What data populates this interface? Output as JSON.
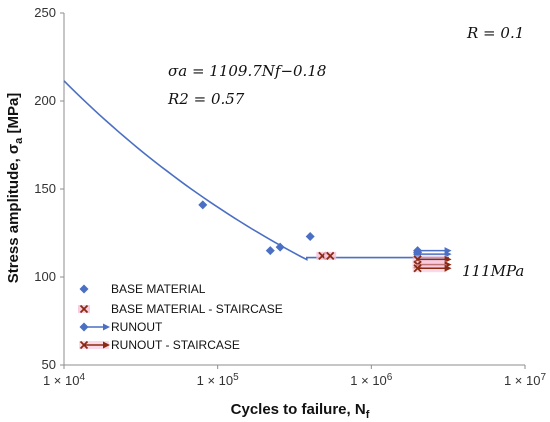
{
  "chart_data": {
    "type": "scatter",
    "xscale": "log",
    "xlim": [
      10000,
      10000000
    ],
    "ylim": [
      50,
      250
    ],
    "x_ticks": [
      {
        "value": 10000,
        "base": "1 × 10",
        "exp": "4"
      },
      {
        "value": 100000,
        "base": "1 × 10",
        "exp": "5"
      },
      {
        "value": 1000000,
        "base": "1 × 10",
        "exp": "6"
      },
      {
        "value": 10000000,
        "base": "1 × 10",
        "exp": "7"
      }
    ],
    "y_ticks": [
      50,
      100,
      150,
      200,
      250
    ],
    "xlabel_main": "Cycles to failure, N",
    "xlabel_sub": "f",
    "ylabel_main": "Stress amplitude, σ",
    "ylabel_sub": "a",
    "ylabel_unit": " [MPa]",
    "grid": false,
    "annotations": {
      "ratio": "R = 0.1",
      "equation": "σa = 1109.7Nf−0.18",
      "r_squared": "R2 = 0.57",
      "endurance": "111MPa"
    },
    "fit_curve": {
      "coefficient": 1109.7,
      "exponent": -0.18,
      "knee_x": 380000,
      "endurance_y": 111,
      "x_end": 3200000
    },
    "series": [
      {
        "name": "BASE MATERIAL",
        "marker": "diamond",
        "color": "#4a6fc3",
        "points": [
          [
            80000,
            141
          ],
          [
            220000,
            115
          ],
          [
            255000,
            117
          ],
          [
            400000,
            123
          ],
          [
            2000000,
            114
          ]
        ]
      },
      {
        "name": "BASE MATERIAL - STAIRCASE",
        "marker": "x",
        "color": "#8b2a12",
        "points": [
          [
            480000,
            112
          ],
          [
            540000,
            112
          ]
        ]
      },
      {
        "name": "RUNOUT",
        "marker": "arrow",
        "color": "#4a6fc3",
        "points": [
          [
            2000000,
            115
          ],
          [
            2000000,
            113
          ]
        ]
      },
      {
        "name": "RUNOUT - STAIRCASE",
        "marker": "arrow-x",
        "color": "#8b2a12",
        "points": [
          [
            2000000,
            110
          ],
          [
            2000000,
            107
          ],
          [
            2000000,
            105
          ]
        ]
      }
    ],
    "legend_position": "bottom-left"
  }
}
